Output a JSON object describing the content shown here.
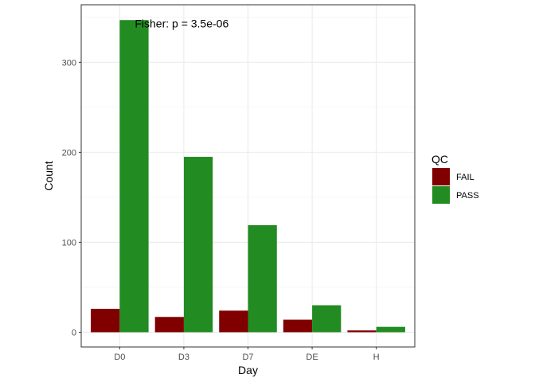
{
  "chart_data": {
    "type": "bar",
    "categories": [
      "D0",
      "D3",
      "D7",
      "DE",
      "H"
    ],
    "series": [
      {
        "name": "FAIL",
        "values": [
          26,
          17,
          24,
          14,
          2
        ],
        "color": "#800000"
      },
      {
        "name": "PASS",
        "values": [
          347,
          195,
          119,
          30,
          6
        ],
        "color": "#228B22"
      }
    ],
    "xlabel": "Day",
    "ylabel": "Count",
    "ylim": [
      -16.4,
      364.0
    ],
    "yticks": [
      0,
      100,
      200,
      300
    ],
    "annotation": {
      "text": "Fisher: p = 3.5e-06",
      "category": "D0",
      "y": 343
    },
    "legend": {
      "title": "QC",
      "position": "right"
    },
    "grid": true
  }
}
